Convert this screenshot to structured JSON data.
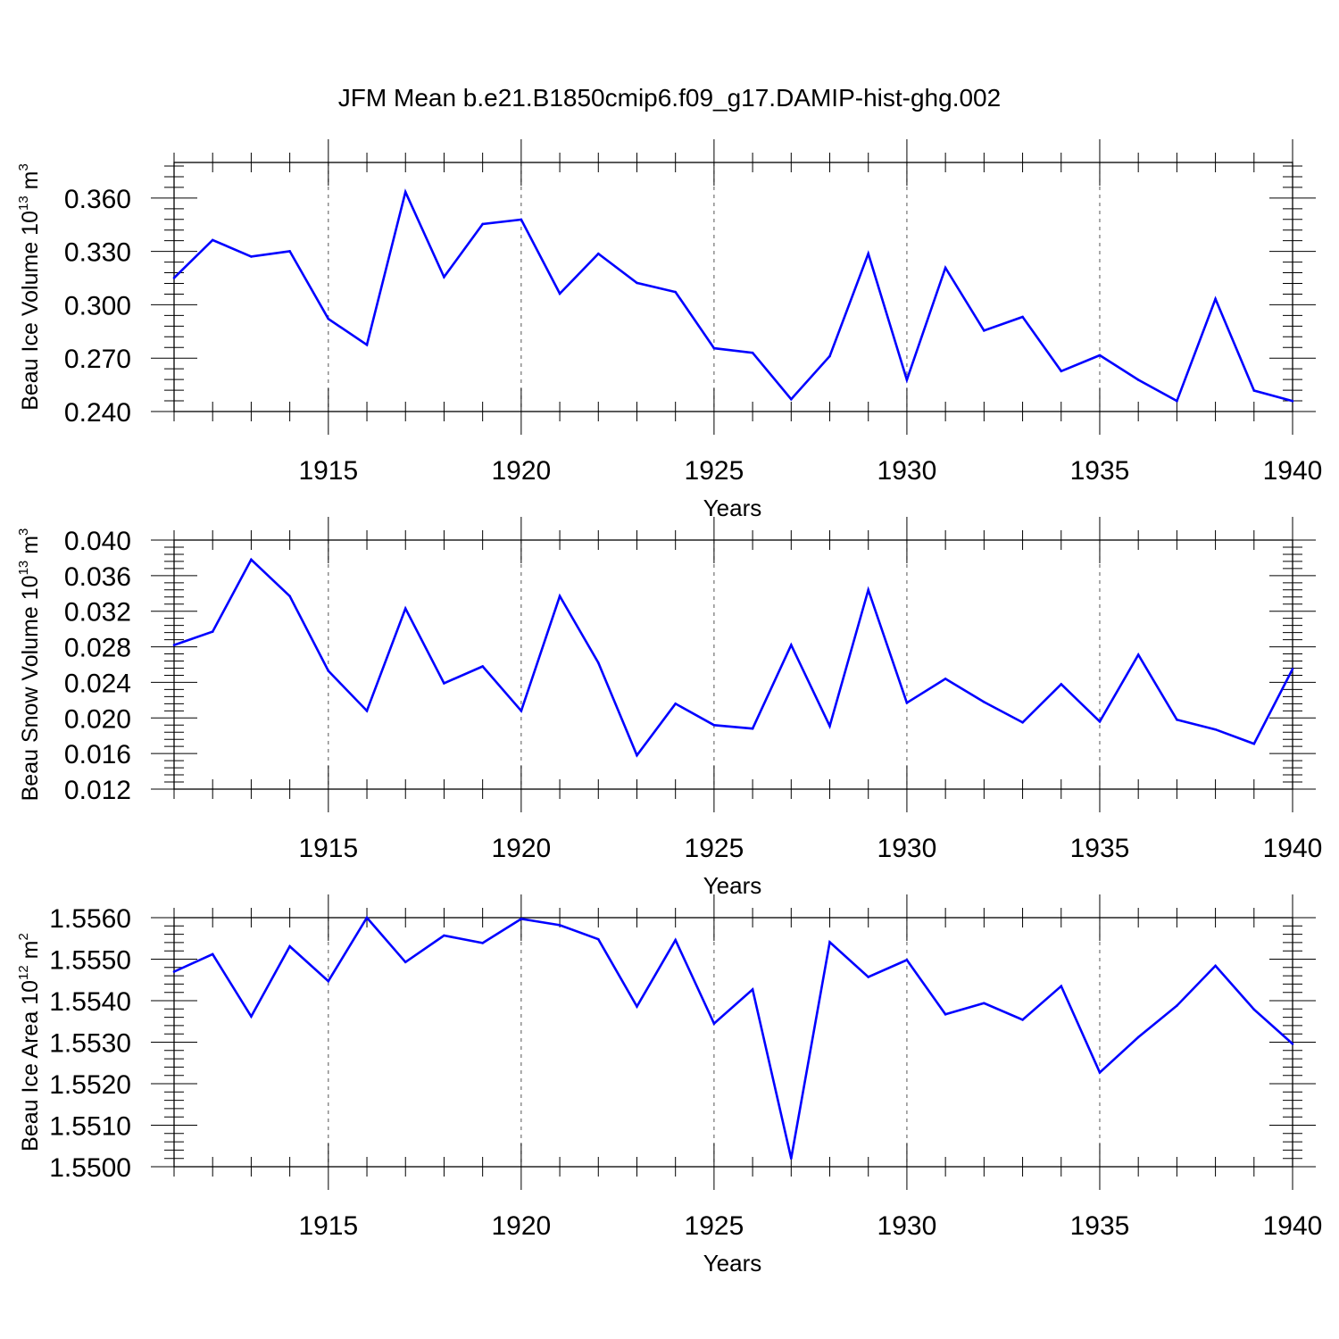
{
  "title": "JFM Mean b.e21.B1850cmip6.f09_g17.DAMIP-hist-ghg.002",
  "line_color": "#0000ff",
  "chart_data": [
    {
      "type": "line",
      "ylabel_main": "Beau Ice Volume 10",
      "ylabel_exp": "13",
      "ylabel_unit": " m",
      "ylabel_unit_exp": "3",
      "xlabel": "Years",
      "xlim": [
        1911,
        1940
      ],
      "ylim": [
        0.24,
        0.38
      ],
      "yticks": [
        0.24,
        0.27,
        0.3,
        0.33,
        0.36
      ],
      "ytick_labels": [
        "0.240",
        "0.270",
        "0.300",
        "0.330",
        "0.360"
      ],
      "xticks": [
        1915,
        1920,
        1925,
        1930,
        1935,
        1940
      ],
      "xtick_labels": [
        "1915",
        "1920",
        "1925",
        "1930",
        "1935",
        "1940"
      ],
      "grid": "vertical dashed at labeled years",
      "x": [
        1911,
        1912,
        1913,
        1914,
        1915,
        1916,
        1917,
        1918,
        1919,
        1920,
        1921,
        1922,
        1923,
        1924,
        1925,
        1926,
        1927,
        1928,
        1929,
        1930,
        1931,
        1932,
        1933,
        1934,
        1935,
        1936,
        1937,
        1938,
        1939,
        1940
      ],
      "values": [
        0.3151,
        0.3364,
        0.3271,
        0.3301,
        0.2921,
        0.2775,
        0.3634,
        0.3156,
        0.3454,
        0.3479,
        0.3063,
        0.3287,
        0.3123,
        0.3072,
        0.2756,
        0.273,
        0.2469,
        0.2711,
        0.3287,
        0.2578,
        0.3208,
        0.2855,
        0.2932,
        0.2627,
        0.2716,
        0.2578,
        0.2459,
        0.3033,
        0.2518,
        0.2459
      ]
    },
    {
      "type": "line",
      "ylabel_main": "Beau Snow Volume 10",
      "ylabel_exp": "13",
      "ylabel_unit": " m",
      "ylabel_unit_exp": "3",
      "xlabel": "Years",
      "xlim": [
        1911,
        1940
      ],
      "ylim": [
        0.012,
        0.04
      ],
      "yticks": [
        0.012,
        0.016,
        0.02,
        0.024,
        0.028,
        0.032,
        0.036,
        0.04
      ],
      "ytick_labels": [
        "0.012",
        "0.016",
        "0.020",
        "0.024",
        "0.028",
        "0.032",
        "0.036",
        "0.040"
      ],
      "xticks": [
        1915,
        1920,
        1925,
        1930,
        1935,
        1940
      ],
      "xtick_labels": [
        "1915",
        "1920",
        "1925",
        "1930",
        "1935",
        "1940"
      ],
      "grid": "vertical dashed at labeled years",
      "x": [
        1911,
        1912,
        1913,
        1914,
        1915,
        1916,
        1917,
        1918,
        1919,
        1920,
        1921,
        1922,
        1923,
        1924,
        1925,
        1926,
        1927,
        1928,
        1929,
        1930,
        1931,
        1932,
        1933,
        1934,
        1935,
        1936,
        1937,
        1938,
        1939,
        1940
      ],
      "values": [
        0.0282,
        0.0297,
        0.0378,
        0.0337,
        0.0253,
        0.0208,
        0.0323,
        0.0239,
        0.0258,
        0.0208,
        0.0337,
        0.0262,
        0.0158,
        0.0216,
        0.0192,
        0.0188,
        0.0282,
        0.0191,
        0.0344,
        0.0217,
        0.0244,
        0.0218,
        0.0195,
        0.0238,
        0.0196,
        0.0271,
        0.0198,
        0.0187,
        0.0171,
        0.0255
      ]
    },
    {
      "type": "line",
      "ylabel_main": "Beau Ice Area 10",
      "ylabel_exp": "12",
      "ylabel_unit": " m",
      "ylabel_unit_exp": "2",
      "xlabel": "Years",
      "xlim": [
        1911,
        1940
      ],
      "ylim": [
        1.55,
        1.556
      ],
      "yticks": [
        1.55,
        1.551,
        1.552,
        1.553,
        1.554,
        1.555,
        1.556
      ],
      "ytick_labels": [
        "1.5500",
        "1.5510",
        "1.5520",
        "1.5530",
        "1.5540",
        "1.5550",
        "1.5560"
      ],
      "xticks": [
        1915,
        1920,
        1925,
        1930,
        1935,
        1940
      ],
      "xtick_labels": [
        "1915",
        "1920",
        "1925",
        "1930",
        "1935",
        "1940"
      ],
      "grid": "vertical dashed at labeled years",
      "x": [
        1911,
        1912,
        1913,
        1914,
        1915,
        1916,
        1917,
        1918,
        1919,
        1920,
        1921,
        1922,
        1923,
        1924,
        1925,
        1926,
        1927,
        1928,
        1929,
        1930,
        1931,
        1932,
        1933,
        1934,
        1935,
        1936,
        1937,
        1938,
        1939,
        1940
      ],
      "values": [
        1.5547,
        1.55512,
        1.55362,
        1.55531,
        1.55447,
        1.556,
        1.55493,
        1.55557,
        1.55539,
        1.55597,
        1.55582,
        1.55548,
        1.55386,
        1.55546,
        1.55345,
        1.55427,
        1.5502,
        1.55541,
        1.55457,
        1.55498,
        1.55367,
        1.55394,
        1.55354,
        1.55435,
        1.55227,
        1.55312,
        1.55388,
        1.55484,
        1.55379,
        1.55296
      ]
    }
  ]
}
